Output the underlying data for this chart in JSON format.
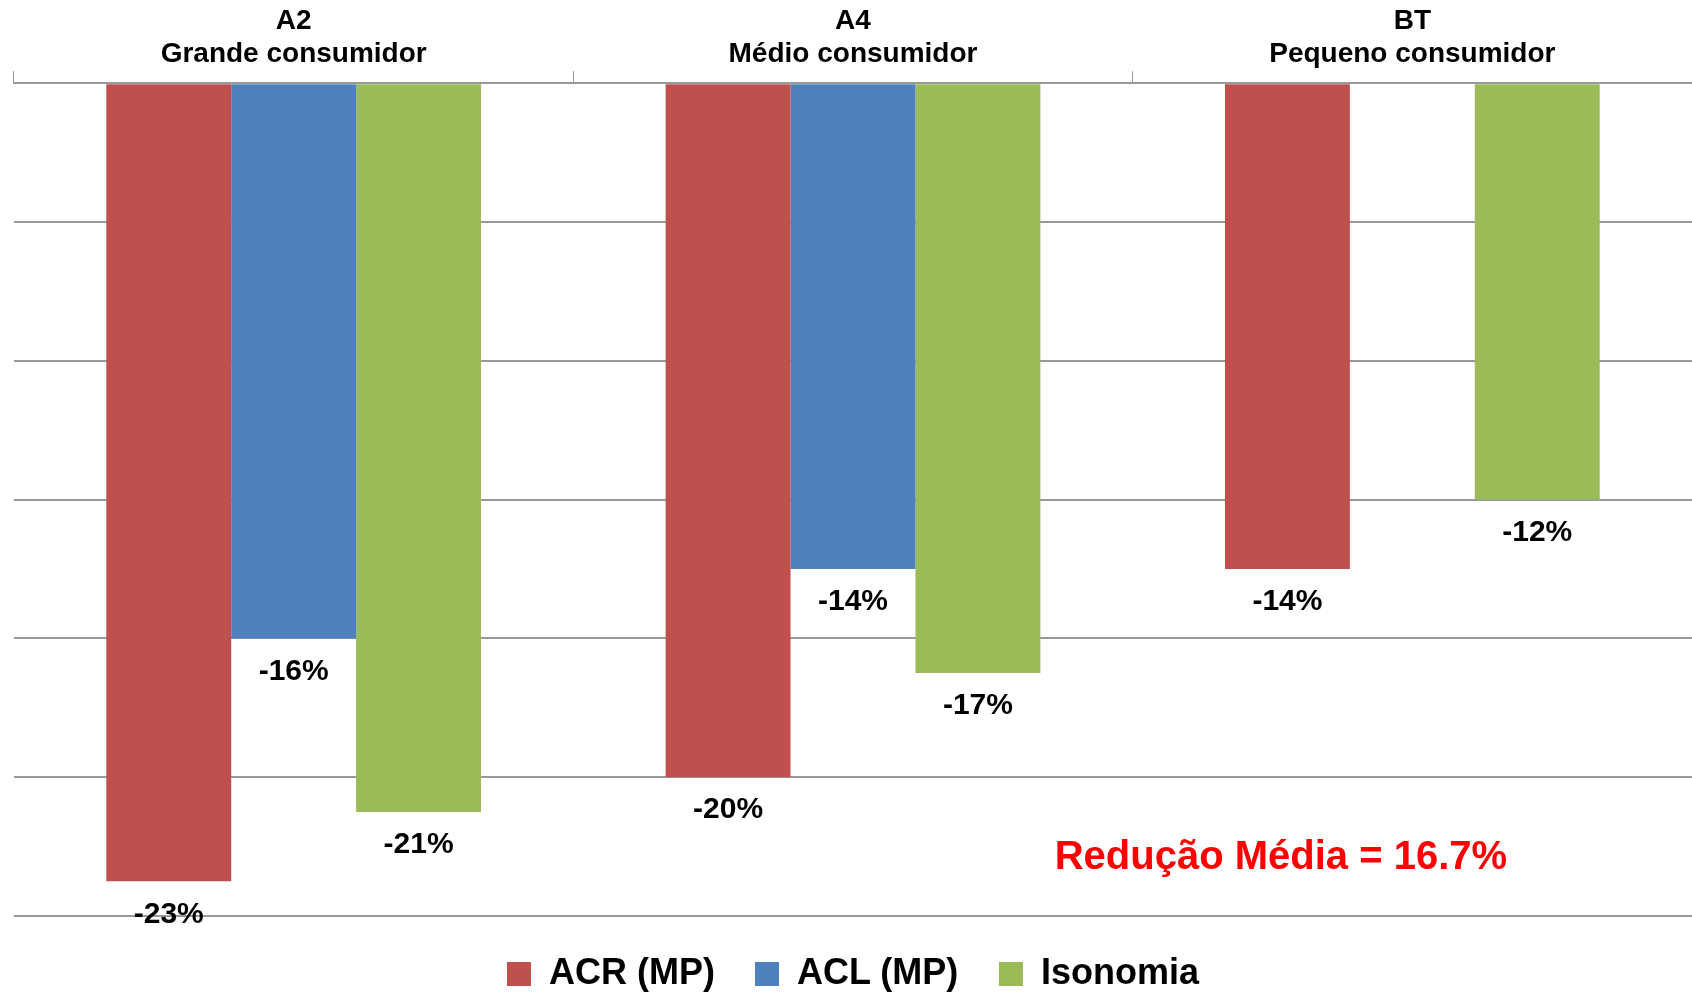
{
  "chart_data": {
    "type": "bar",
    "categories": [
      "A2\nGrande consumidor",
      "A4\nMédio consumidor",
      "BT\nPequeno consumidor"
    ],
    "series": [
      {
        "name": "ACR (MP)",
        "color": "#c0504d",
        "values": [
          -23,
          -20,
          -14
        ],
        "value_labels": [
          "-23%",
          "-20%",
          "-14%"
        ]
      },
      {
        "name": "ACL (MP)",
        "color": "#4f81bd",
        "values": [
          -16,
          -14,
          null
        ],
        "value_labels": [
          "-16%",
          "-14%",
          null
        ]
      },
      {
        "name": "Isonomia",
        "color": "#9bbb59",
        "values": [
          -21,
          -17,
          -12
        ],
        "value_labels": [
          "-21%",
          "-17%",
          "-12%"
        ]
      }
    ],
    "grid": "y",
    "legend": "bottom",
    "tick_labels": "x",
    "annotations": [
      "Redução Média = 16.7%"
    ]
  }
}
